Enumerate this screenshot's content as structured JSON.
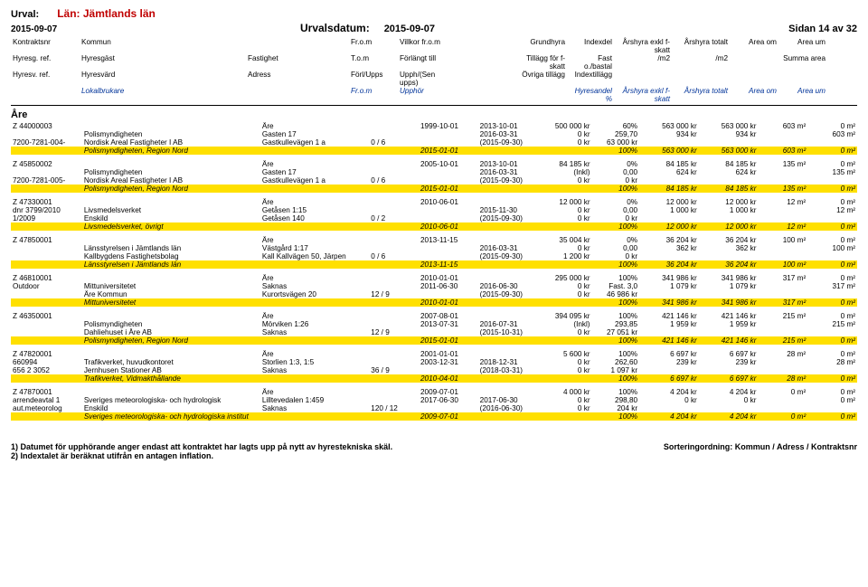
{
  "meta": {
    "urval_label": "Urval:",
    "lan": "Län: Jämtlands län",
    "date": "2015-09-07",
    "urvalsdatum_label": "Urvalsdatum:",
    "urvalsdatum": "2015-09-07",
    "sidan": "Sidan 14 av 32",
    "are_heading": "Åre"
  },
  "header": {
    "r1": [
      "Kontraktsnr",
      "Kommun",
      "Fr.o.m",
      "Villkor fr.o.m",
      "Grundhyra",
      "Indexdel",
      "Årshyra exkl f-skatt",
      "Årshyra totalt",
      "Area om",
      "Area um"
    ],
    "r2": [
      "Hyresg. ref.",
      "Hyresgäst",
      "Fastighet",
      "T.o.m",
      "Förlängt till",
      "Tillägg för f-skatt",
      "Fast o./bastal",
      "/m2",
      "/m2",
      "",
      "Summa area"
    ],
    "r3": [
      "Hyresv. ref.",
      "Hyresvärd",
      "Adress",
      "Förl/Upps",
      "Upph/(Sen upps)",
      "Övriga tillägg",
      "Indextillägg"
    ],
    "r4": [
      "",
      "Lokalbrukare",
      "",
      "Fr.o.m",
      "Upphör",
      "",
      "Hyresandel %",
      "Årshyra exkl f-skatt",
      "Årshyra totalt",
      "Area om",
      "Area um"
    ]
  },
  "groups": [
    {
      "rows": [
        [
          "Z 44000003",
          "",
          "Åre",
          "",
          "1999-10-01",
          "2013-10-01",
          "500 000 kr",
          "60%",
          "563 000 kr",
          "563 000 kr",
          "603 m²",
          "0 m²"
        ],
        [
          "",
          "Polismyndigheten",
          "Gasten 17",
          "",
          "",
          "2016-03-31",
          "0 kr",
          "259,70",
          "934 kr",
          "934 kr",
          "",
          "603 m²"
        ],
        [
          "7200-7281-004-",
          "Nordisk Areal Fastigheter I AB",
          "Gastkullevägen 1 a",
          "0 / 6",
          "",
          "(2015-09-30)",
          "0 kr",
          "63 000 kr",
          "",
          "",
          "",
          ""
        ]
      ],
      "summary": [
        "",
        "Polismyndigheten, Region Nord",
        "",
        "",
        "2015-01-01",
        "",
        "",
        "100%",
        "563 000 kr",
        "563 000 kr",
        "603 m²",
        "0 m²"
      ]
    },
    {
      "rows": [
        [
          "Z 45850002",
          "",
          "Åre",
          "",
          "2005-10-01",
          "2013-10-01",
          "84 185 kr",
          "0%",
          "84 185 kr",
          "84 185 kr",
          "135 m²",
          "0 m²"
        ],
        [
          "",
          "Polismyndigheten",
          "Gasten 17",
          "",
          "",
          "2016-03-31",
          "(Inkl)",
          "0,00",
          "624 kr",
          "624 kr",
          "",
          "135 m²"
        ],
        [
          "7200-7281-005-",
          "Nordisk Areal Fastigheter I AB",
          "Gastkullevägen 1 a",
          "0 / 6",
          "",
          "(2015-09-30)",
          "0 kr",
          "0 kr",
          "",
          "",
          "",
          ""
        ]
      ],
      "summary": [
        "",
        "Polismyndigheten, Region Nord",
        "",
        "",
        "2015-01-01",
        "",
        "",
        "100%",
        "84 185 kr",
        "84 185 kr",
        "135 m²",
        "0 m²"
      ]
    },
    {
      "rows": [
        [
          "Z 47330001",
          "",
          "Åre",
          "",
          "2010-06-01",
          "",
          "12 000 kr",
          "0%",
          "12 000 kr",
          "12 000 kr",
          "12 m²",
          "0 m²"
        ],
        [
          "dnr 3799/2010",
          "Livsmedelsverket",
          "Getåsen 1:15",
          "",
          "",
          "2015-11-30",
          "0 kr",
          "0,00",
          "1 000 kr",
          "1 000 kr",
          "",
          "12 m²"
        ],
        [
          "1/2009",
          "Enskild",
          "Getåsen 140",
          "0 / 2",
          "",
          "(2015-09-30)",
          "0 kr",
          "0 kr",
          "",
          "",
          "",
          ""
        ]
      ],
      "summary": [
        "",
        "Livsmedelsverket, övrigt",
        "",
        "",
        "2010-06-01",
        "",
        "",
        "100%",
        "12 000 kr",
        "12 000 kr",
        "12 m²",
        "0 m²"
      ]
    },
    {
      "rows": [
        [
          "Z 47850001",
          "",
          "Åre",
          "",
          "2013-11-15",
          "",
          "35 004 kr",
          "0%",
          "36 204 kr",
          "36 204 kr",
          "100 m²",
          "0 m²"
        ],
        [
          "",
          "Länsstyrelsen i Jämtlands län",
          "Västgård 1:17",
          "",
          "",
          "2016-03-31",
          "0 kr",
          "0,00",
          "362 kr",
          "362 kr",
          "",
          "100 m²"
        ],
        [
          "",
          "Kallbygdens Fastighetsbolag",
          "Kall Kallvägen 50, Järpen",
          "0 / 6",
          "",
          "(2015-09-30)",
          "1 200 kr",
          "0 kr",
          "",
          "",
          "",
          ""
        ]
      ],
      "summary": [
        "",
        "Länsstyrelsen i Jämtlands län",
        "",
        "",
        "2013-11-15",
        "",
        "",
        "100%",
        "36 204 kr",
        "36 204 kr",
        "100 m²",
        "0 m²"
      ]
    },
    {
      "rows": [
        [
          "Z 46810001",
          "",
          "Åre",
          "",
          "2010-01-01",
          "",
          "295 000 kr",
          "100%",
          "341 986 kr",
          "341 986 kr",
          "317 m²",
          "0 m²"
        ],
        [
          "Outdoor",
          "Mittuniversitetet",
          "Saknas",
          "",
          "2011-06-30",
          "2016-06-30",
          "0 kr",
          "Fast. 3,0",
          "1 079 kr",
          "1 079 kr",
          "",
          "317 m²"
        ],
        [
          "",
          "Åre Kommun",
          "Kurortsvägen 20",
          "12 / 9",
          "",
          "(2015-09-30)",
          "0 kr",
          "46 986 kr",
          "",
          "",
          "",
          ""
        ]
      ],
      "summary": [
        "",
        "Mittuniversitetet",
        "",
        "",
        "2010-01-01",
        "",
        "",
        "100%",
        "341 986 kr",
        "341 986 kr",
        "317 m²",
        "0 m²"
      ]
    },
    {
      "rows": [
        [
          "Z 46350001",
          "",
          "Åre",
          "",
          "2007-08-01",
          "",
          "394 095 kr",
          "100%",
          "421 146 kr",
          "421 146 kr",
          "215 m²",
          "0 m²"
        ],
        [
          "",
          "Polismyndigheten",
          "Mörviken 1:26",
          "",
          "2013-07-31",
          "2016-07-31",
          "(Inkl)",
          "293,85",
          "1 959 kr",
          "1 959 kr",
          "",
          "215 m²"
        ],
        [
          "",
          "Dahliehuset i Åre AB",
          "Saknas",
          "12 / 9",
          "",
          "(2015-10-31)",
          "0 kr",
          "27 051 kr",
          "",
          "",
          "",
          ""
        ]
      ],
      "summary": [
        "",
        "Polismyndigheten, Region Nord",
        "",
        "",
        "2015-01-01",
        "",
        "",
        "100%",
        "421 146 kr",
        "421 146 kr",
        "215 m²",
        "0 m²"
      ]
    },
    {
      "rows": [
        [
          "Z 47820001",
          "",
          "Åre",
          "",
          "2001-01-01",
          "",
          "5 600 kr",
          "100%",
          "6 697 kr",
          "6 697 kr",
          "28 m²",
          "0 m²"
        ],
        [
          "660994",
          "Trafikverket, huvudkontoret",
          "Storlien 1:3, 1:5",
          "",
          "2003-12-31",
          "2018-12-31",
          "0 kr",
          "262,60",
          "239 kr",
          "239 kr",
          "",
          "28 m²"
        ],
        [
          "656 2 3052",
          "Jernhusen Stationer AB",
          "Saknas",
          "36 / 9",
          "",
          "(2018-03-31)",
          "0 kr",
          "1 097 kr",
          "",
          "",
          "",
          ""
        ]
      ],
      "summary": [
        "",
        "Trafikverket, Vidmakthållande",
        "",
        "",
        "2010-04-01",
        "",
        "",
        "100%",
        "6 697 kr",
        "6 697 kr",
        "28 m²",
        "0 m²"
      ]
    },
    {
      "rows": [
        [
          "Z 47870001",
          "",
          "Åre",
          "",
          "2009-07-01",
          "",
          "4 000 kr",
          "100%",
          "4 204 kr",
          "4 204 kr",
          "0 m²",
          "0 m²"
        ],
        [
          "arrendeavtal 1",
          "Sveriges meteorologiska- och hydrologisk",
          "Lilltevedalen 1:459",
          "",
          "2017-06-30",
          "2017-06-30",
          "0 kr",
          "298,80",
          "0 kr",
          "0 kr",
          "",
          "0 m²"
        ],
        [
          "aut.meteorolog",
          "Enskild",
          "Saknas",
          "120 / 12",
          "",
          "(2016-06-30)",
          "0 kr",
          "204 kr",
          "",
          "",
          "",
          ""
        ]
      ],
      "summary": [
        "",
        "Sveriges meteorologiska- och hydrologiska institut",
        "",
        "",
        "2009-07-01",
        "",
        "",
        "100%",
        "4 204 kr",
        "4 204 kr",
        "0 m²",
        "0 m²"
      ]
    }
  ],
  "footnotes": {
    "l1": "1) Datumet för upphörande anger endast att kontraktet har lagts upp på nytt av hyrestekniska skäl.",
    "l2": "2) Indextalet är beräknat utifrån en antagen inflation.",
    "sort": "Sorteringordning: Kommun / Adress / Kontraktsnr"
  }
}
